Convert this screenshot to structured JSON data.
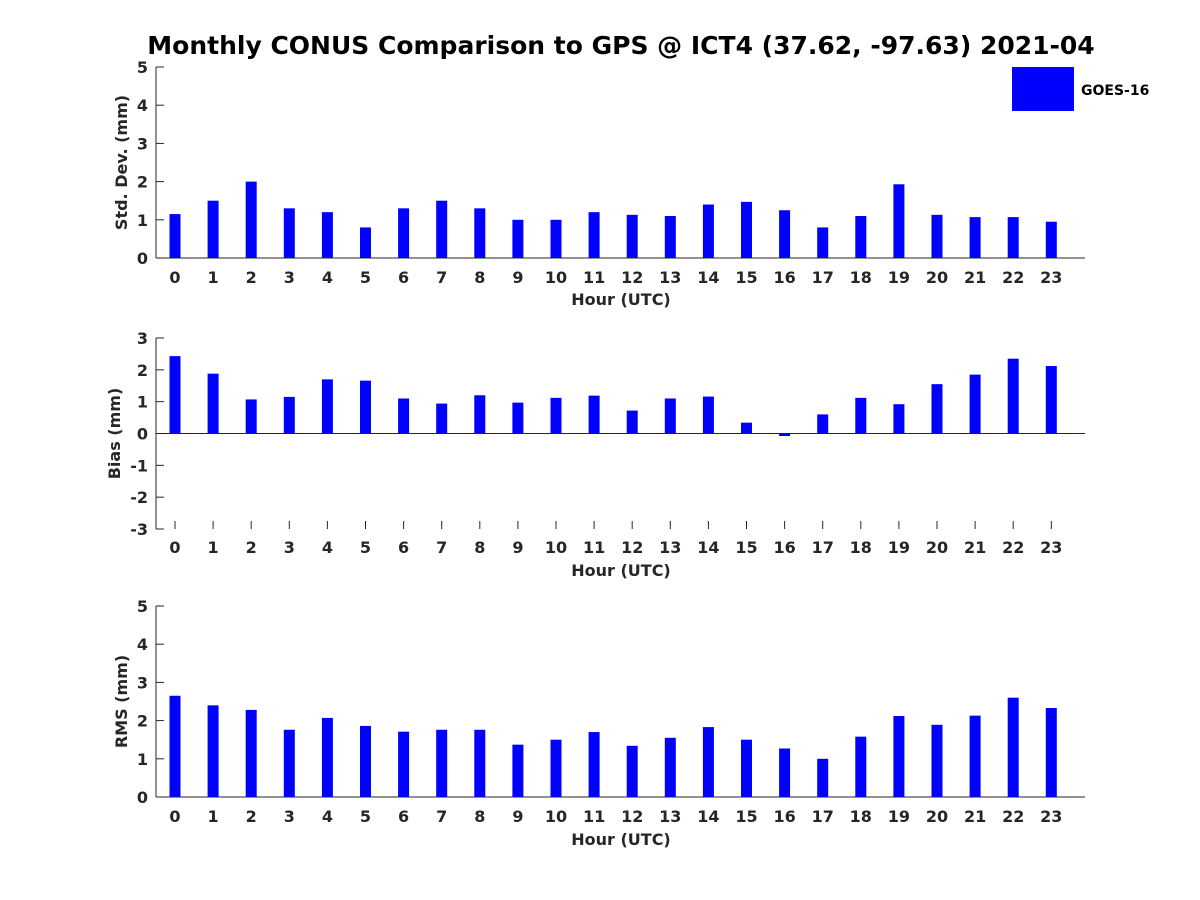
{
  "colors": {
    "bar": "#0000ff",
    "axis": "#262626",
    "background": "#ffffff"
  },
  "chart_data": [
    {
      "type": "bar",
      "title": "Monthly CONUS Comparison to GPS @ ICT4 (37.62, -97.63) 2021-04",
      "xlabel": "Hour (UTC)",
      "ylabel": "Std. Dev. (mm)",
      "ylim": [
        0,
        5
      ],
      "yticks": [
        "0",
        "1",
        "2",
        "3",
        "4",
        "5"
      ],
      "categories": [
        "0",
        "1",
        "2",
        "3",
        "4",
        "5",
        "6",
        "7",
        "8",
        "9",
        "10",
        "11",
        "12",
        "13",
        "14",
        "15",
        "16",
        "17",
        "18",
        "19",
        "20",
        "21",
        "22",
        "23"
      ],
      "series": [
        {
          "name": "GOES-16",
          "values": [
            1.15,
            1.5,
            2.0,
            1.3,
            1.2,
            0.8,
            1.3,
            1.5,
            1.3,
            1.0,
            1.0,
            1.2,
            1.13,
            1.1,
            1.4,
            1.47,
            1.25,
            0.8,
            1.1,
            1.93,
            1.13,
            1.07,
            1.07,
            0.95
          ]
        }
      ],
      "legend": {
        "position": "top-right"
      }
    },
    {
      "type": "bar",
      "xlabel": "Hour (UTC)",
      "ylabel": "Bias (mm)",
      "ylim": [
        -3,
        3
      ],
      "yticks": [
        "-3",
        "-2",
        "-1",
        "0",
        "1",
        "2",
        "3"
      ],
      "categories": [
        "0",
        "1",
        "2",
        "3",
        "4",
        "5",
        "6",
        "7",
        "8",
        "9",
        "10",
        "11",
        "12",
        "13",
        "14",
        "15",
        "16",
        "17",
        "18",
        "19",
        "20",
        "21",
        "22",
        "23"
      ],
      "series": [
        {
          "values": [
            2.43,
            1.88,
            1.07,
            1.15,
            1.7,
            1.66,
            1.1,
            0.94,
            1.2,
            0.97,
            1.12,
            1.19,
            0.72,
            1.1,
            1.16,
            0.34,
            -0.08,
            0.6,
            1.12,
            0.92,
            1.55,
            1.85,
            2.35,
            2.12
          ]
        }
      ]
    },
    {
      "type": "bar",
      "xlabel": "Hour (UTC)",
      "ylabel": "RMS (mm)",
      "ylim": [
        0,
        5
      ],
      "yticks": [
        "0",
        "1",
        "2",
        "3",
        "4",
        "5"
      ],
      "categories": [
        "0",
        "1",
        "2",
        "3",
        "4",
        "5",
        "6",
        "7",
        "8",
        "9",
        "10",
        "11",
        "12",
        "13",
        "14",
        "15",
        "16",
        "17",
        "18",
        "19",
        "20",
        "21",
        "22",
        "23"
      ],
      "series": [
        {
          "values": [
            2.65,
            2.4,
            2.28,
            1.76,
            2.07,
            1.86,
            1.71,
            1.76,
            1.76,
            1.37,
            1.5,
            1.7,
            1.34,
            1.55,
            1.83,
            1.5,
            1.27,
            1.0,
            1.58,
            2.12,
            1.89,
            2.13,
            2.6,
            2.33
          ]
        }
      ]
    }
  ]
}
